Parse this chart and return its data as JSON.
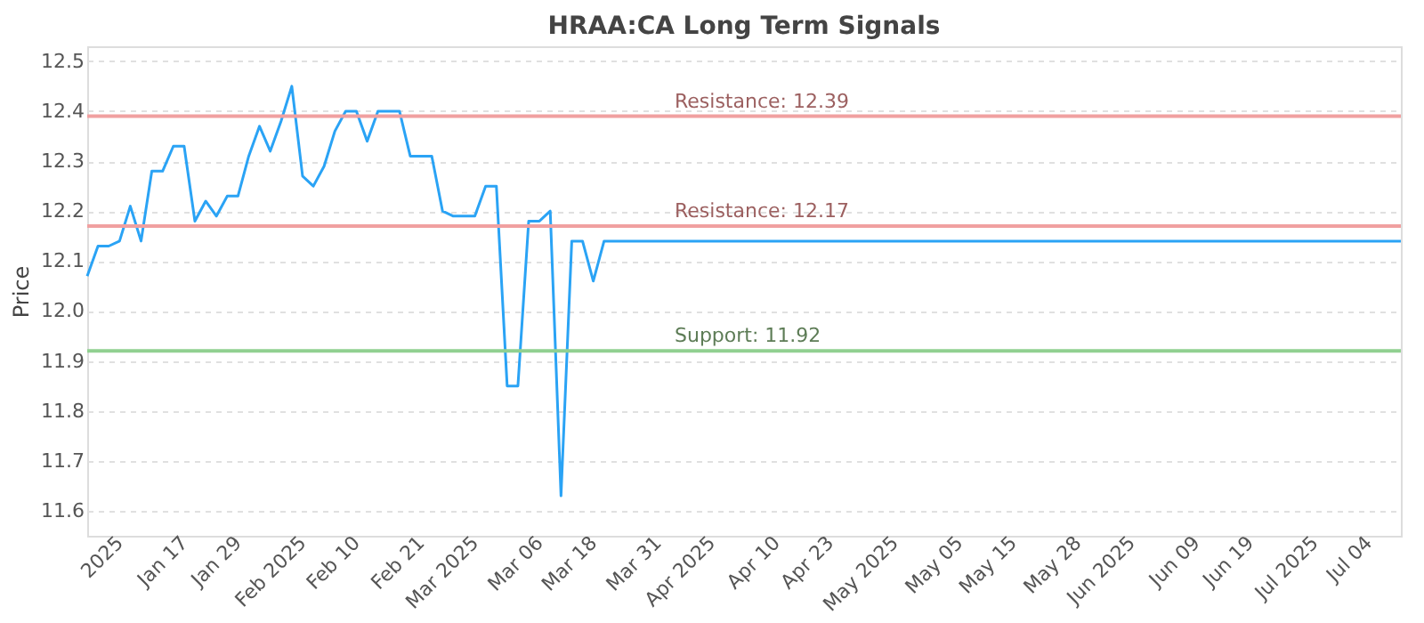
{
  "chart_data": {
    "type": "line",
    "title": "HRAA:CA Long Term Signals",
    "ylabel": "Price",
    "categories": [
      null,
      null,
      null,
      "2025",
      null,
      null,
      null,
      null,
      null,
      "Jan 17",
      null,
      null,
      null,
      null,
      "Jan 29",
      null,
      null,
      null,
      null,
      null,
      "Feb 2025",
      null,
      null,
      null,
      null,
      "Feb 10",
      null,
      null,
      null,
      null,
      null,
      "Feb 21",
      null,
      null,
      null,
      null,
      "Mar 2025",
      null,
      null,
      null,
      null,
      null,
      "Mar 06",
      null,
      null,
      null,
      null,
      "Mar 18",
      null,
      null,
      null,
      null,
      null,
      "Mar 31",
      null,
      null,
      null,
      null,
      "Apr 2025",
      null,
      null,
      null,
      null,
      null,
      "Apr 10",
      null,
      null,
      null,
      null,
      "Apr 23",
      null,
      null,
      null,
      null,
      null,
      "May 2025",
      null,
      null,
      null,
      null,
      null,
      "May 05",
      null,
      null,
      null,
      null,
      "May 15",
      null,
      null,
      null,
      null,
      null,
      "May 28",
      null,
      null,
      null,
      null,
      "Jun 2025",
      null,
      null,
      null,
      null,
      null,
      "Jun 09",
      null,
      null,
      null,
      null,
      "Jun 19",
      null,
      null,
      null,
      null,
      null,
      "Jul 2025",
      null,
      null,
      null,
      null,
      "Jul 04",
      null,
      null,
      null
    ],
    "series": [
      {
        "color": "#2aa3f5",
        "values": [
          12.07,
          12.13,
          12.13,
          12.14,
          12.21,
          12.14,
          12.28,
          12.28,
          12.33,
          12.33,
          12.18,
          12.22,
          12.19,
          12.23,
          12.23,
          12.31,
          12.37,
          12.32,
          12.38,
          12.45,
          12.27,
          12.25,
          12.29,
          12.36,
          12.4,
          12.4,
          12.34,
          12.4,
          12.4,
          12.4,
          12.31,
          12.31,
          12.31,
          12.2,
          12.19,
          12.19,
          12.19,
          12.25,
          12.25,
          11.85,
          11.85,
          12.18,
          12.18,
          12.2,
          11.63,
          12.14,
          12.14,
          12.06,
          12.14,
          12.14,
          12.14,
          12.14,
          12.14,
          12.14,
          12.14,
          12.14,
          12.14,
          12.14,
          12.14,
          12.14,
          12.14,
          12.14,
          12.14,
          12.14,
          12.14,
          12.14,
          12.14,
          12.14,
          12.14,
          12.14,
          12.14,
          12.14,
          12.14,
          12.14,
          12.14,
          12.14,
          12.14,
          12.14,
          12.14,
          12.14,
          12.14,
          12.14,
          12.14,
          12.14,
          12.14,
          12.14,
          12.14,
          12.14,
          12.14,
          12.14,
          12.14,
          12.14,
          12.14,
          12.14,
          12.14,
          12.14,
          12.14,
          12.14,
          12.14,
          12.14,
          12.14,
          12.14,
          12.14,
          12.14,
          12.14,
          12.14,
          12.14,
          12.14,
          12.14,
          12.14,
          12.14,
          12.14,
          12.14,
          12.14,
          12.14,
          12.14,
          12.14,
          12.14,
          12.14,
          12.14,
          12.14,
          12.14,
          12.14
        ]
      }
    ],
    "ylim": [
      11.55,
      12.53
    ],
    "yticks": [
      11.6,
      11.7,
      11.8,
      11.9,
      {
        "value": 12,
        "label": "12.0"
      },
      12.1,
      12.2,
      12.3,
      12.4,
      12.5
    ],
    "grid": "y",
    "marker": "none",
    "line_style": "solid",
    "ref_lines": [
      {
        "axis": "y",
        "value": 12.39,
        "label": "Resistance: 12.39",
        "color": "#f0a0a0"
      },
      {
        "axis": "y",
        "value": 12.17,
        "label": "Resistance: 12.17",
        "color": "#f0a0a0"
      },
      {
        "axis": "y",
        "value": 11.92,
        "label": "Support: 11.92",
        "color": "#90d090"
      }
    ]
  }
}
